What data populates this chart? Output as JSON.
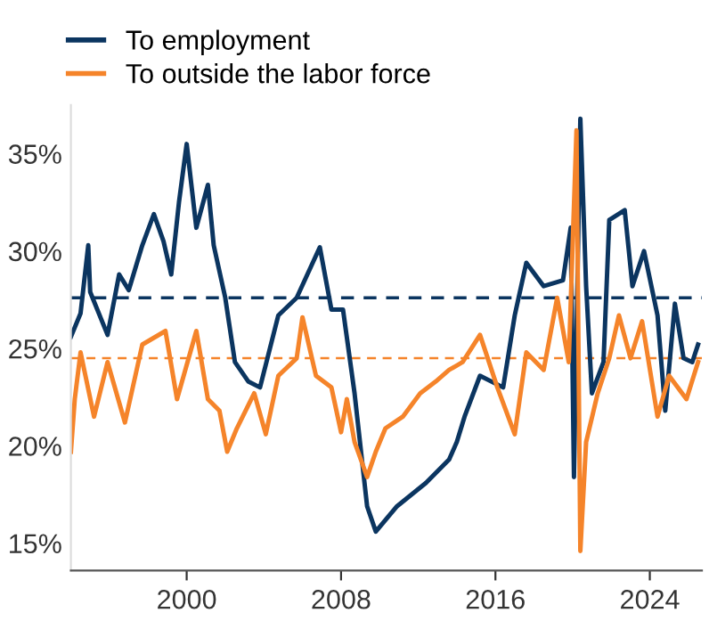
{
  "chart_data": {
    "type": "line",
    "legend": "top left",
    "grid": false,
    "xlim": [
      1994,
      2026.7
    ],
    "xticks": [
      2000,
      2008,
      2016,
      2024
    ],
    "ylim": [
      13.6,
      37.5
    ],
    "yticks": [
      {
        "value": 15,
        "label": "15%"
      },
      {
        "value": 20,
        "label": "20%"
      },
      {
        "value": 25,
        "label": "25%"
      },
      {
        "value": 30,
        "label": "30%"
      },
      {
        "value": 35,
        "label": "35%"
      }
    ],
    "series": [
      {
        "name": "To employment",
        "color": "#0b3560",
        "x": [
          1994.0,
          1994.5,
          1994.9,
          1995.0,
          1995.9,
          1996.5,
          1997.0,
          1997.7,
          1998.3,
          1998.8,
          1999.2,
          1999.6,
          2000.0,
          2000.5,
          2001.1,
          2001.4,
          2002.0,
          2002.5,
          2003.2,
          2003.8,
          2004.75,
          2005.7,
          2006.9,
          2007.5,
          2008.1,
          2008.7,
          2009.35,
          2009.8,
          2010.9,
          2012.4,
          2013.6,
          2014.0,
          2014.4,
          2015.2,
          2016.4,
          2017.0,
          2017.6,
          2018.5,
          2019.5,
          2019.9,
          2020.07,
          2020.4,
          2020.7,
          2021.0,
          2021.6,
          2021.9,
          2022.7,
          2023.1,
          2023.7,
          2024.4,
          2024.8,
          2025.3,
          2025.75,
          2026.2,
          2026.5
        ],
        "values": [
          25.6,
          26.8,
          30.3,
          27.9,
          25.7,
          28.8,
          28.0,
          30.3,
          31.9,
          30.5,
          28.8,
          32.5,
          35.5,
          31.2,
          33.4,
          30.3,
          27.6,
          24.3,
          23.3,
          23.0,
          26.7,
          27.6,
          30.2,
          27.0,
          27.0,
          22.7,
          16.9,
          15.6,
          16.9,
          18.1,
          19.3,
          20.2,
          21.5,
          23.6,
          23.0,
          26.7,
          29.4,
          28.2,
          28.5,
          31.2,
          18.4,
          36.8,
          28.2,
          22.7,
          24.3,
          31.6,
          32.1,
          28.2,
          30.0,
          26.7,
          21.8,
          27.3,
          24.5,
          24.3,
          25.2
        ]
      },
      {
        "name": "To outside the labor force",
        "color": "#f5842a",
        "x": [
          1994.0,
          1994.2,
          1994.5,
          1995.2,
          1995.9,
          1996.8,
          1997.7,
          1998.9,
          1999.5,
          2000.5,
          2001.1,
          2001.7,
          2002.1,
          2002.6,
          2003.5,
          2004.1,
          2004.75,
          2005.7,
          2006.0,
          2006.7,
          2007.5,
          2008.0,
          2008.3,
          2008.7,
          2009.35,
          2009.8,
          2010.3,
          2011.2,
          2012.1,
          2012.9,
          2013.6,
          2014.3,
          2015.2,
          2016.1,
          2017.0,
          2017.6,
          2018.5,
          2019.2,
          2019.8,
          2020.0,
          2020.2,
          2020.4,
          2020.7,
          2021.3,
          2021.9,
          2022.4,
          2023.0,
          2023.6,
          2024.4,
          2025.0,
          2025.9,
          2026.5
        ],
        "values": [
          19.7,
          22.4,
          24.8,
          21.5,
          24.3,
          21.2,
          25.2,
          25.9,
          22.4,
          25.9,
          22.4,
          21.8,
          19.7,
          20.9,
          22.7,
          20.6,
          23.6,
          24.5,
          26.6,
          23.6,
          23.0,
          20.7,
          22.4,
          20.2,
          18.4,
          19.7,
          20.9,
          21.5,
          22.7,
          23.3,
          23.9,
          24.3,
          25.7,
          23.0,
          20.6,
          24.8,
          23.9,
          27.6,
          24.3,
          30.3,
          36.2,
          14.6,
          20.2,
          22.7,
          24.5,
          26.7,
          24.5,
          26.4,
          21.5,
          23.6,
          22.4,
          24.3
        ]
      }
    ],
    "ref_lines": [
      {
        "axis": "y",
        "value": 27.6,
        "color": "#0b3560",
        "line_style": "dashed"
      },
      {
        "axis": "y",
        "value": 24.5,
        "color": "#f5842a",
        "line_style": "dashed"
      }
    ]
  }
}
